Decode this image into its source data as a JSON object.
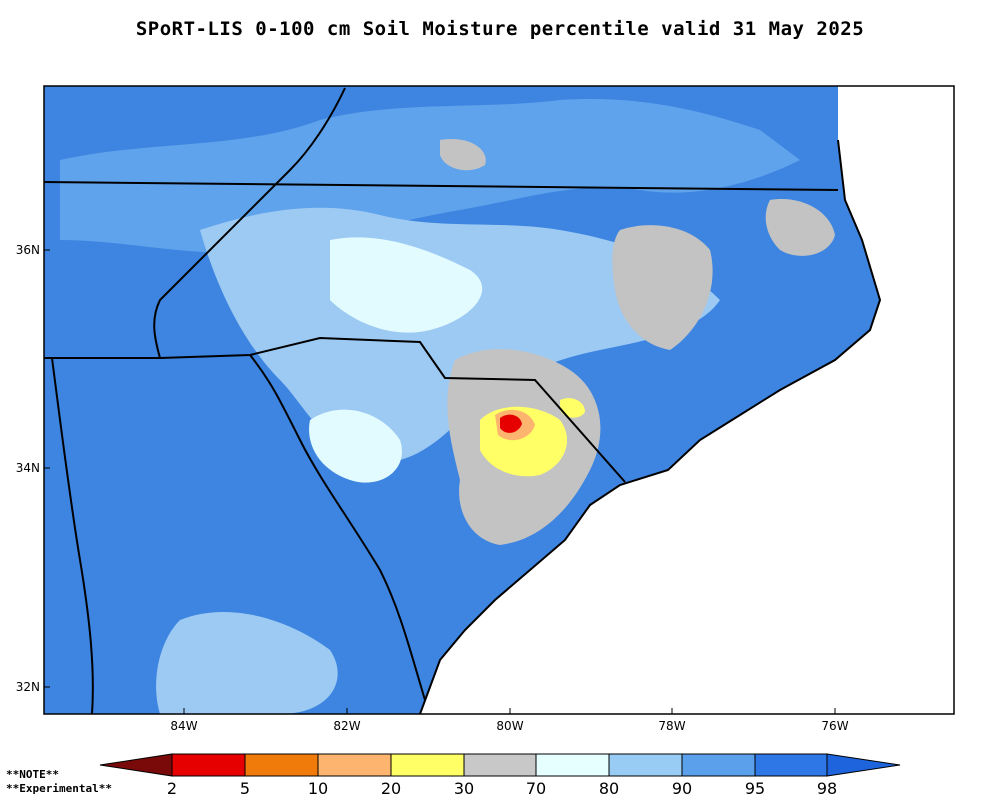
{
  "title": "SPoRT-LIS 0-100 cm Soil Moisture percentile valid 31 May 2025",
  "map": {
    "lat_labels": [
      "36N",
      "34N",
      "32N"
    ],
    "lon_labels": [
      "84W",
      "82W",
      "80W",
      "78W",
      "76W"
    ]
  },
  "colorbar": {
    "labels": [
      "2",
      "5",
      "10",
      "20",
      "30",
      "70",
      "80",
      "90",
      "95",
      "98"
    ],
    "colors": [
      "#7a0a0a",
      "#e60000",
      "#f07a0a",
      "#fdb46e",
      "#ffff66",
      "#c8c8c8",
      "#e6ffff",
      "#99ccf5",
      "#5aa0eb",
      "#2d78e6",
      "#1e64dc"
    ]
  },
  "notes": {
    "note": "**NOTE**",
    "experimental": "**Experimental**"
  }
}
